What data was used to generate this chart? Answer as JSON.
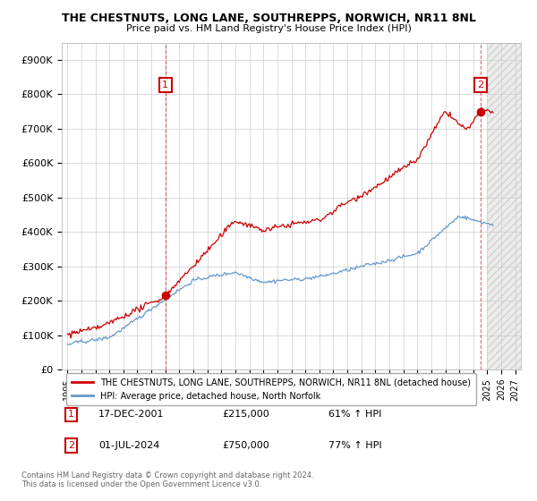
{
  "title": "THE CHESTNUTS, LONG LANE, SOUTHREPPS, NORWICH, NR11 8NL",
  "subtitle": "Price paid vs. HM Land Registry's House Price Index (HPI)",
  "ylim": [
    0,
    950000
  ],
  "yticks": [
    0,
    100000,
    200000,
    300000,
    400000,
    500000,
    600000,
    700000,
    800000,
    900000
  ],
  "ytick_labels": [
    "£0",
    "£100K",
    "£200K",
    "£300K",
    "£400K",
    "£500K",
    "£600K",
    "£700K",
    "£800K",
    "£900K"
  ],
  "xlim_start": 1994.6,
  "xlim_end": 2027.4,
  "transaction1_x": 2002.0,
  "transaction1_y": 215000,
  "transaction2_x": 2024.5,
  "transaction2_y": 750000,
  "legend_line1": "THE CHESTNUTS, LONG LANE, SOUTHREPPS, NORWICH, NR11 8NL (detached house)",
  "legend_line2": "HPI: Average price, detached house, North Norfolk",
  "ann1_date": "17-DEC-2001",
  "ann1_price": "£215,000",
  "ann1_hpi": "61% ↑ HPI",
  "ann2_date": "01-JUL-2024",
  "ann2_price": "£750,000",
  "ann2_hpi": "77% ↑ HPI",
  "footer": "Contains HM Land Registry data © Crown copyright and database right 2024.\nThis data is licensed under the Open Government Licence v3.0.",
  "red_color": "#cc0000",
  "blue_color": "#6699cc",
  "bg_color": "#ffffff",
  "grid_color": "#cccccc",
  "hatch_start": 2025.0,
  "hatch_end": 2027.4
}
